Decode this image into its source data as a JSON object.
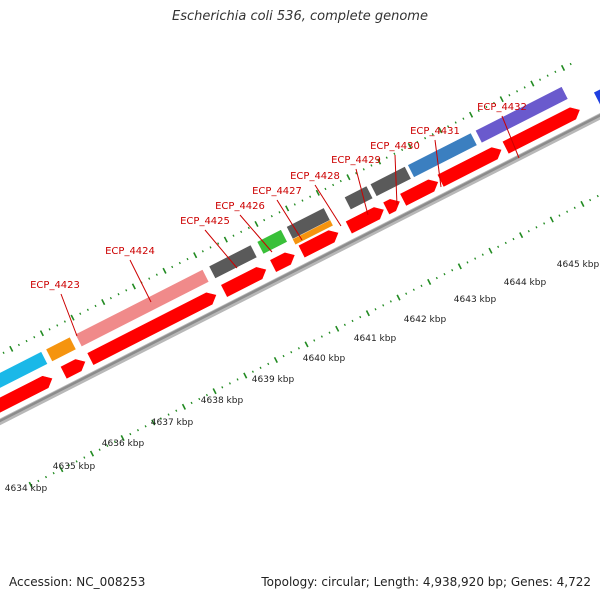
{
  "header": {
    "title": "Escherichia coli 536, complete genome"
  },
  "footer": {
    "accession": "Accession: NC_008253",
    "summary": "Topology: circular; Length: 4,938,920 bp; Genes: 4,722"
  },
  "colors": {
    "backbone": "#8c8c8c",
    "cds_forward": "#ff0000",
    "tick": "#228b22",
    "label": "#cc0000",
    "scale_label": "#222222"
  },
  "scale": {
    "unit": "kbp",
    "ticks": [
      {
        "kbp": 4634,
        "label": "4634 kbp"
      },
      {
        "kbp": 4635,
        "label": "4635 kbp"
      },
      {
        "kbp": 4636,
        "label": "4636 kbp"
      },
      {
        "kbp": 4637,
        "label": "4637 kbp"
      },
      {
        "kbp": 4638,
        "label": "4638 kbp"
      },
      {
        "kbp": 4639,
        "label": "4639 kbp"
      },
      {
        "kbp": 4640,
        "label": "4640 kbp"
      },
      {
        "kbp": 4641,
        "label": "4641 kbp"
      },
      {
        "kbp": 4642,
        "label": "4642 kbp"
      },
      {
        "kbp": 4643,
        "label": "4643 kbp"
      },
      {
        "kbp": 4644,
        "label": "4644 kbp"
      },
      {
        "kbp": 4645,
        "label": "4645 kbp"
      }
    ]
  },
  "genes": [
    {
      "label": "ECP_4423",
      "cog_color": "#1ab8e8"
    },
    {
      "label": "ECP_4424",
      "cog_color": "#f5940f"
    },
    {
      "label": "ECP_4425",
      "cog_color": "#f08a8a"
    },
    {
      "label": "ECP_4426",
      "cog_color": "#5a5a5a"
    },
    {
      "label": "ECP_4427",
      "cog_color": "#39c039"
    },
    {
      "label": "ECP_4428",
      "cog_color": "#5a5a5a"
    },
    {
      "label": "ECP_4429",
      "cog_color": "#5a5a5a"
    },
    {
      "label": "ECP_4430",
      "cog_color": "#5a5a5a"
    },
    {
      "label": "ECP_4431",
      "cog_color": "#3b7fc0"
    },
    {
      "label": "ECP_4432",
      "cog_color": "#6a5acd"
    }
  ]
}
